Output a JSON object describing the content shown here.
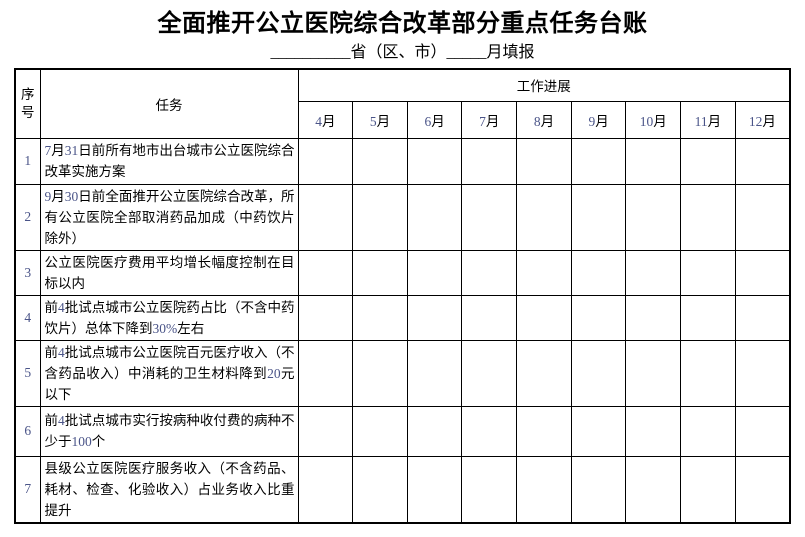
{
  "title": "全面推开公立医院综合改革部分重点任务台账",
  "subtitle": "__________省（区、市）_____月填报",
  "colors": {
    "text": "#000000",
    "border": "#000000",
    "background": "#ffffff",
    "digit_tint": "#4a5488"
  },
  "table": {
    "header": {
      "col_no": "序号",
      "col_task": "任务",
      "col_progress": "工作进展",
      "months": [
        "4月",
        "5月",
        "6月",
        "7月",
        "8月",
        "9月",
        "10月",
        "11月",
        "12月"
      ]
    },
    "tasks": [
      {
        "no": "1",
        "text": "7月31日前所有地市出台城市公立医院综合改革实施方案"
      },
      {
        "no": "2",
        "text": "9月30日前全面推开公立医院综合改革，所有公立医院全部取消药品加成（中药饮片除外）"
      },
      {
        "no": "3",
        "text": "公立医院医疗费用平均增长幅度控制在目标以内"
      },
      {
        "no": "4",
        "text": "前4批试点城市公立医院药占比（不含中药饮片）总体下降到30%左右"
      },
      {
        "no": "5",
        "text": "前4批试点城市公立医院百元医疗收入（不含药品收入）中消耗的卫生材料降到20元以下"
      },
      {
        "no": "6",
        "text": "前4批试点城市实行按病种收付费的病种不少于100个"
      },
      {
        "no": "7",
        "text": "县级公立医院医疗服务收入（不含药品、耗材、检查、化验收入）占业务收入比重提升"
      }
    ]
  }
}
